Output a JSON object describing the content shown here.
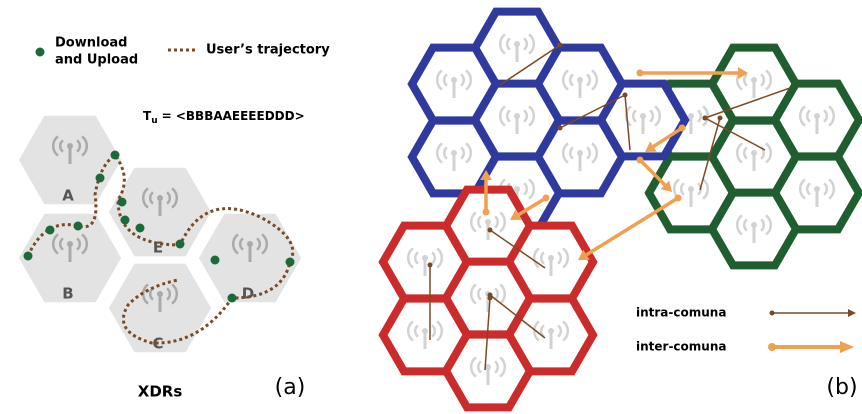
{
  "legend": {
    "point_label": [
      "Download",
      "and Upload"
    ],
    "trajectory_label": "User’s trajectory"
  },
  "formula": {
    "symbol": "T",
    "subscript": "u",
    "expression": "= <BBBAAEEEEDDD>"
  },
  "cells": [
    "A",
    "B",
    "E",
    "D",
    "C"
  ],
  "left_caption": "XDRs",
  "left_tag": "(a)",
  "right_tag": "(b)",
  "right_legend": {
    "intra": "intra-comuna",
    "inter": "inter-comuna"
  }
}
